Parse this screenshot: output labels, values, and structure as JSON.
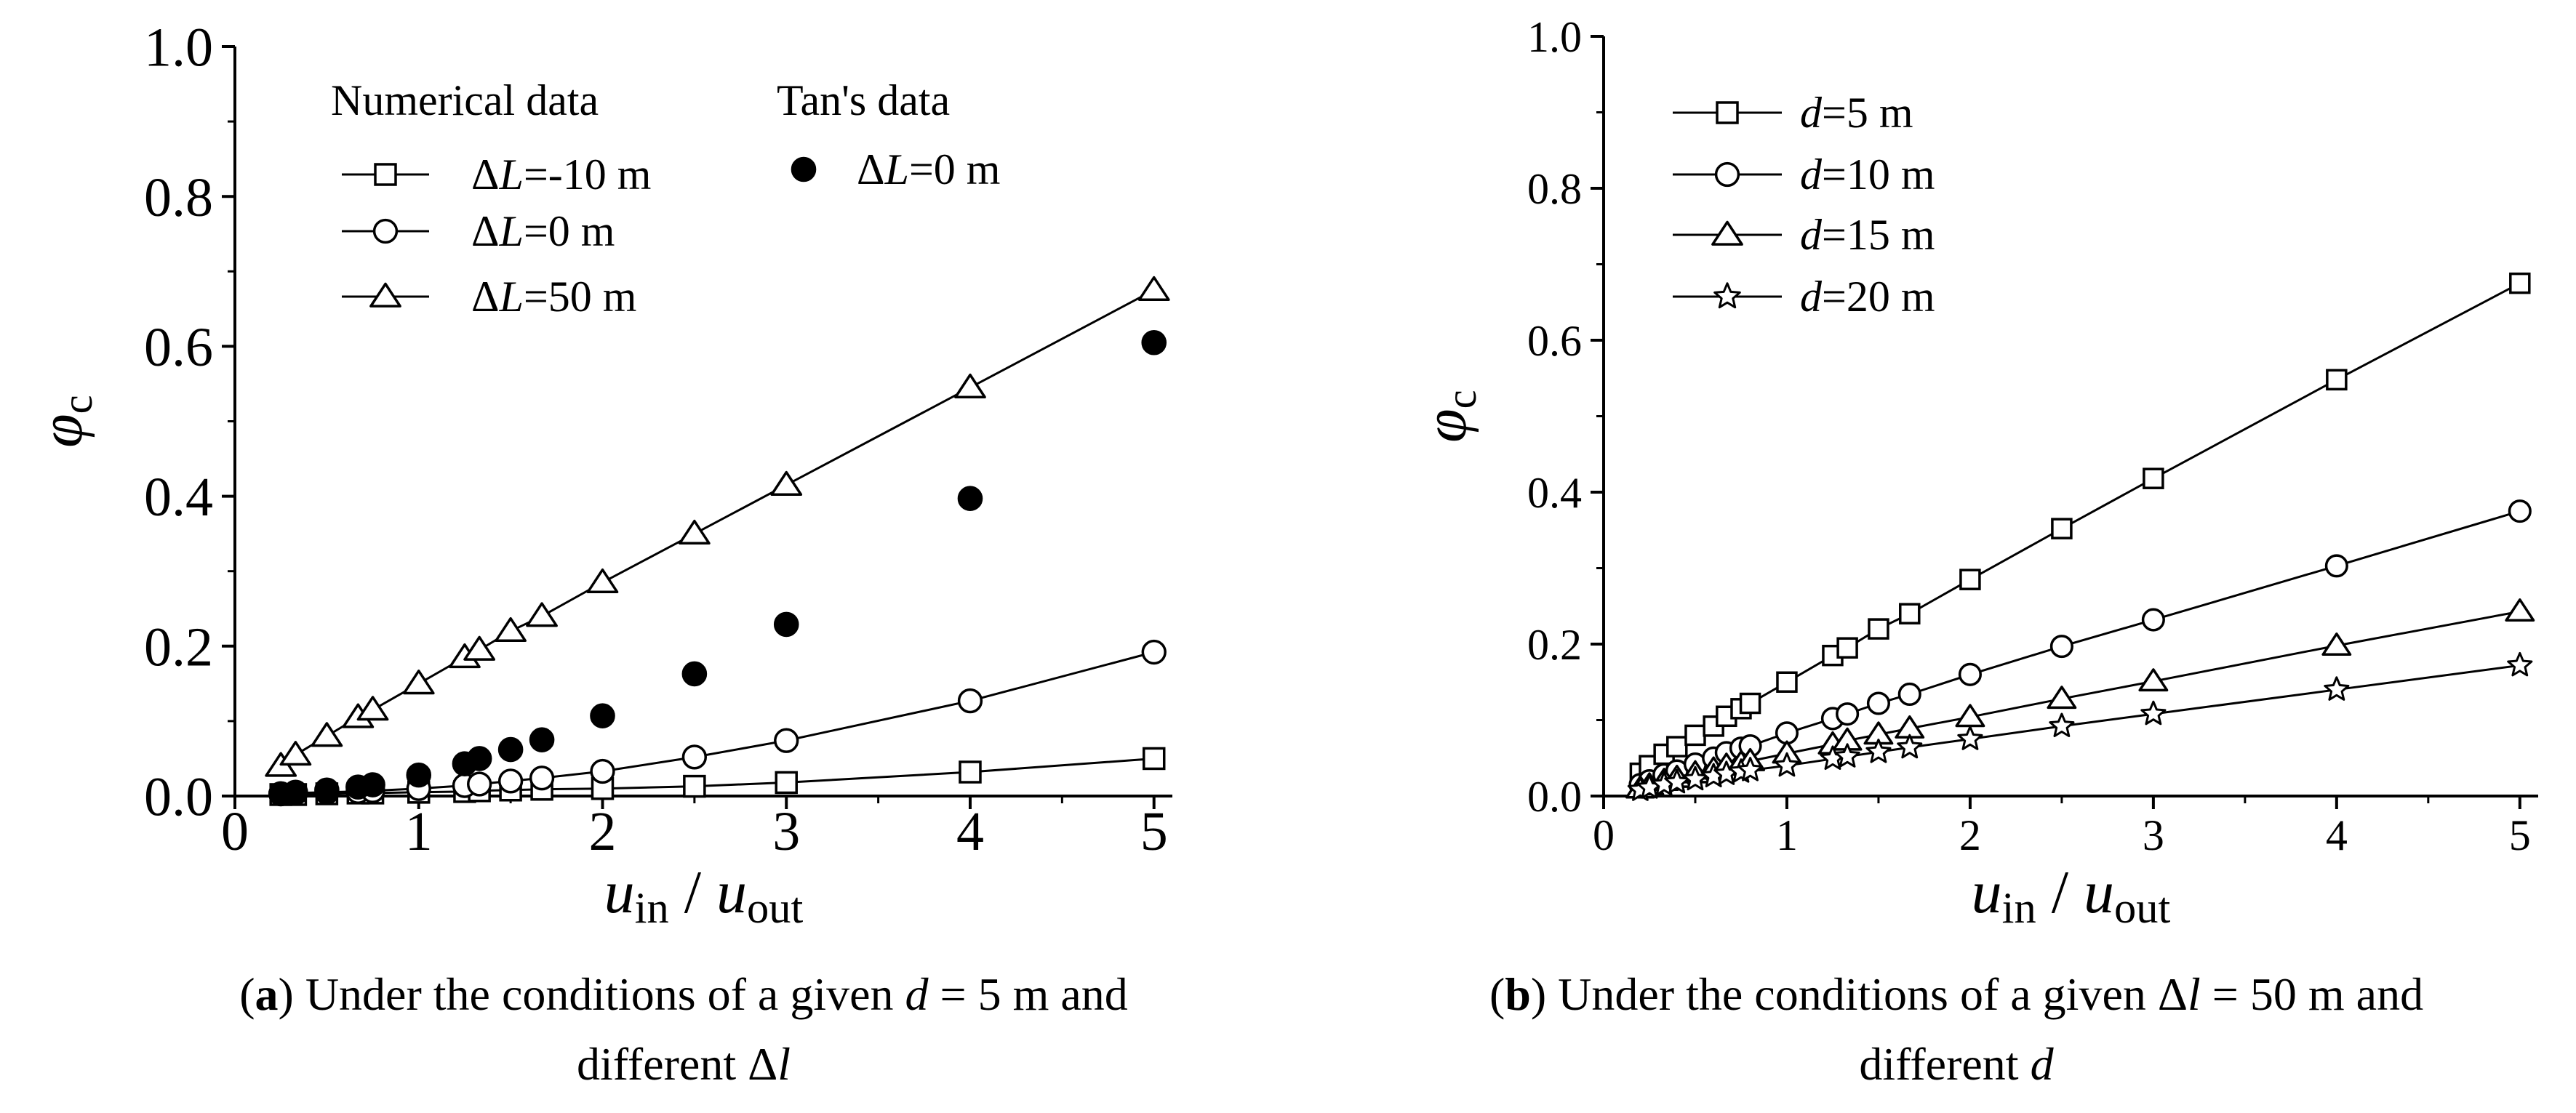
{
  "chart_data": [
    {
      "type": "line",
      "panel_id": "a",
      "x_label_parts": {
        "u": "u",
        "in": "in",
        "slash": "/",
        "u2": "u",
        "out": "out"
      },
      "y_label_parts": {
        "phi": "φ",
        "sub": "c"
      },
      "xlim": [
        0,
        5.1
      ],
      "ylim": [
        0,
        1.0
      ],
      "x_ticks": [
        "0",
        "1",
        "2",
        "3",
        "4",
        "5"
      ],
      "y_ticks": [
        "0.0",
        "0.2",
        "0.4",
        "0.6",
        "0.8",
        "1.0"
      ],
      "legend_headers": {
        "numerical": "Numerical data",
        "tan": "Tan's data"
      },
      "series": [
        {
          "name": "ΔL=-10 m",
          "label_parts": [
            "Δ",
            "L",
            "=-10 m"
          ],
          "marker": "square",
          "x": [
            0.25,
            0.33,
            0.5,
            0.67,
            0.75,
            1.0,
            1.25,
            1.33,
            1.5,
            1.67,
            2.0,
            2.5,
            3.0,
            4.0,
            5.0
          ],
          "y": [
            0.002,
            0.002,
            0.003,
            0.004,
            0.004,
            0.005,
            0.006,
            0.007,
            0.008,
            0.009,
            0.01,
            0.013,
            0.018,
            0.032,
            0.05
          ]
        },
        {
          "name": "ΔL=0 m",
          "label_parts": [
            "Δ",
            "L",
            "=0 m"
          ],
          "marker": "circle",
          "x": [
            0.25,
            0.33,
            0.5,
            0.67,
            0.75,
            1.0,
            1.25,
            1.33,
            1.5,
            1.67,
            2.0,
            2.5,
            3.0,
            4.0,
            5.0
          ],
          "y": [
            0.003,
            0.004,
            0.005,
            0.006,
            0.007,
            0.01,
            0.014,
            0.016,
            0.02,
            0.024,
            0.033,
            0.052,
            0.074,
            0.127,
            0.192
          ]
        },
        {
          "name": "ΔL=50 m",
          "label_parts": [
            "Δ",
            "L",
            "=50 m"
          ],
          "marker": "triangle",
          "x": [
            0.25,
            0.33,
            0.5,
            0.67,
            0.75,
            1.0,
            1.25,
            1.33,
            1.5,
            1.67,
            2.0,
            2.5,
            3.0,
            4.0,
            5.0
          ],
          "y": [
            0.04,
            0.055,
            0.08,
            0.105,
            0.115,
            0.15,
            0.185,
            0.195,
            0.22,
            0.24,
            0.285,
            0.35,
            0.415,
            0.545,
            0.675
          ]
        },
        {
          "name": "Tan's ΔL=0 m",
          "label_parts": [
            "Δ",
            "L",
            "=0 m"
          ],
          "marker": "filled-circle",
          "scatter_only": true,
          "x": [
            0.25,
            0.33,
            0.5,
            0.67,
            0.75,
            1.0,
            1.25,
            1.33,
            1.5,
            1.67,
            2.0,
            2.5,
            3.0,
            4.0,
            5.0
          ],
          "y": [
            0.003,
            0.005,
            0.008,
            0.012,
            0.015,
            0.028,
            0.043,
            0.05,
            0.062,
            0.075,
            0.107,
            0.163,
            0.229,
            0.397,
            0.605
          ]
        }
      ]
    },
    {
      "type": "line",
      "panel_id": "b",
      "x_label_parts": {
        "u": "u",
        "in": "in",
        "slash": "/",
        "u2": "u",
        "out": "out"
      },
      "y_label_parts": {
        "phi": "φ",
        "sub": "c"
      },
      "xlim": [
        0,
        5.1
      ],
      "ylim": [
        0,
        1.0
      ],
      "x_ticks": [
        "0",
        "1",
        "2",
        "3",
        "4",
        "5"
      ],
      "y_ticks": [
        "0.0",
        "0.2",
        "0.4",
        "0.6",
        "0.8",
        "1.0"
      ],
      "series": [
        {
          "name": "d=5 m",
          "label_parts": [
            "d",
            "=5 m"
          ],
          "marker": "square",
          "x": [
            0.2,
            0.25,
            0.33,
            0.4,
            0.5,
            0.6,
            0.67,
            0.75,
            0.8,
            1.0,
            1.25,
            1.33,
            1.5,
            1.67,
            2.0,
            2.5,
            3.0,
            4.0,
            5.0
          ],
          "y": [
            0.03,
            0.04,
            0.055,
            0.065,
            0.08,
            0.092,
            0.105,
            0.115,
            0.122,
            0.15,
            0.185,
            0.195,
            0.22,
            0.24,
            0.285,
            0.352,
            0.418,
            0.548,
            0.675
          ]
        },
        {
          "name": "d=10 m",
          "label_parts": [
            "d",
            "=10 m"
          ],
          "marker": "circle",
          "x": [
            0.2,
            0.25,
            0.33,
            0.4,
            0.5,
            0.6,
            0.67,
            0.75,
            0.8,
            1.0,
            1.25,
            1.33,
            1.5,
            1.67,
            2.0,
            2.5,
            3.0,
            4.0,
            5.0
          ],
          "y": [
            0.015,
            0.02,
            0.028,
            0.033,
            0.042,
            0.05,
            0.057,
            0.063,
            0.066,
            0.083,
            0.102,
            0.108,
            0.122,
            0.134,
            0.16,
            0.197,
            0.232,
            0.303,
            0.375
          ]
        },
        {
          "name": "d=15 m",
          "label_parts": [
            "d",
            "=15 m"
          ],
          "marker": "triangle",
          "x": [
            0.2,
            0.25,
            0.33,
            0.4,
            0.5,
            0.6,
            0.67,
            0.75,
            0.8,
            1.0,
            1.25,
            1.33,
            1.5,
            1.67,
            2.0,
            2.5,
            3.0,
            4.0,
            5.0
          ],
          "y": [
            0.01,
            0.014,
            0.02,
            0.024,
            0.03,
            0.035,
            0.04,
            0.043,
            0.046,
            0.056,
            0.068,
            0.073,
            0.081,
            0.089,
            0.104,
            0.128,
            0.151,
            0.198,
            0.243
          ]
        },
        {
          "name": "d=20 m",
          "label_parts": [
            "d",
            "=20 m"
          ],
          "marker": "star",
          "x": [
            0.2,
            0.25,
            0.33,
            0.4,
            0.5,
            0.6,
            0.67,
            0.75,
            0.8,
            1.0,
            1.25,
            1.33,
            1.5,
            1.67,
            2.0,
            2.5,
            3.0,
            4.0,
            5.0
          ],
          "y": [
            0.008,
            0.011,
            0.015,
            0.018,
            0.022,
            0.026,
            0.029,
            0.032,
            0.034,
            0.04,
            0.049,
            0.052,
            0.058,
            0.064,
            0.075,
            0.092,
            0.108,
            0.14,
            0.172
          ]
        }
      ]
    }
  ],
  "captions": {
    "a": {
      "letter": "a",
      "t1": " Under the conditions of a given ",
      "d": "d",
      "t2": " = 5 m and",
      "t3": "different Δ",
      "l": "l"
    },
    "b": {
      "letter": "b",
      "t1": " Under the conditions of a given Δ",
      "l": "l",
      "t2": " = 50 m and",
      "t3": "different ",
      "d": "d"
    }
  }
}
